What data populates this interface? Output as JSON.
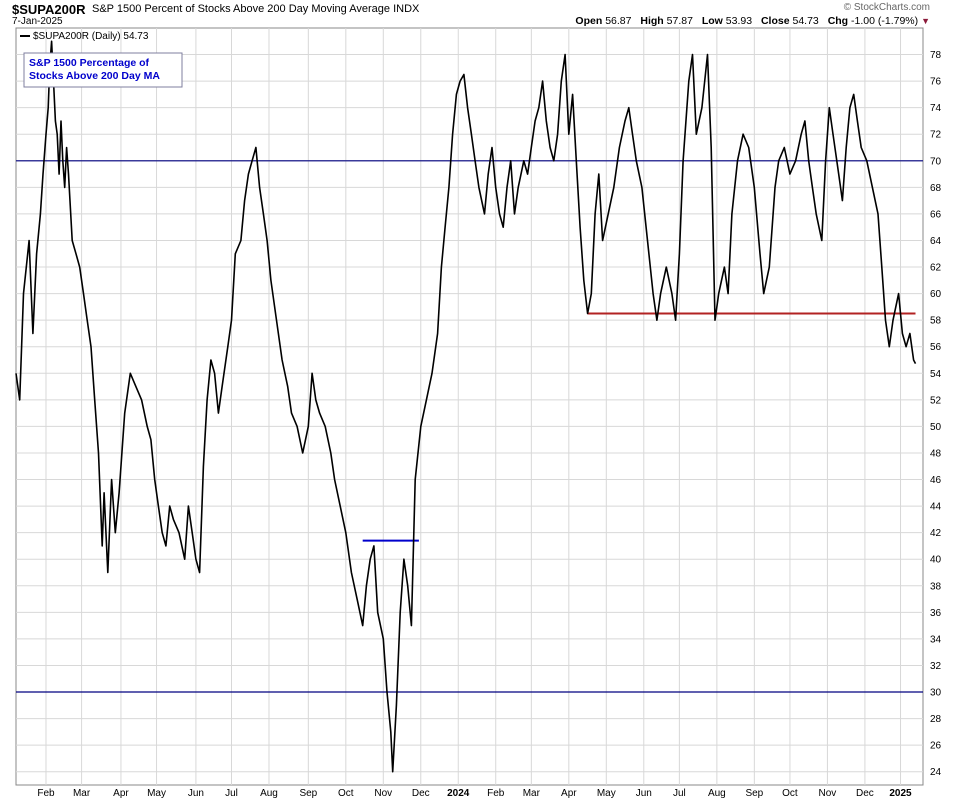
{
  "header": {
    "symbol": "$SUPA200R",
    "description": "S&P 1500 Percent of Stocks Above 200 Day Moving Average",
    "exchange": "INDX",
    "date": "7-Jan-2025",
    "brand": "© StockCharts.com",
    "open_label": "Open",
    "open": "56.87",
    "high_label": "High",
    "high": "57.87",
    "low_label": "Low",
    "low": "53.93",
    "close_label": "Close",
    "close": "54.73",
    "chg_label": "Chg",
    "chg": "-1.00 (-1.79%)"
  },
  "chart_data": {
    "type": "line",
    "legend_label": "$SUPA200R (Daily) 54.73",
    "annotation": [
      "S&P 1500 Percentage of",
      "Stocks Above 200 Day MA"
    ],
    "ylim": [
      23,
      80
    ],
    "yticks": [
      24,
      26,
      28,
      30,
      32,
      34,
      36,
      38,
      40,
      42,
      44,
      46,
      48,
      50,
      52,
      54,
      56,
      58,
      60,
      62,
      64,
      66,
      68,
      70,
      72,
      74,
      76,
      78
    ],
    "xlim": [
      0,
      24.2
    ],
    "xticks": [
      {
        "label": "Feb",
        "x": 0.8
      },
      {
        "label": "Mar",
        "x": 1.75
      },
      {
        "label": "Apr",
        "x": 2.8
      },
      {
        "label": "May",
        "x": 3.75
      },
      {
        "label": "Jun",
        "x": 4.8
      },
      {
        "label": "Jul",
        "x": 5.75
      },
      {
        "label": "Aug",
        "x": 6.75
      },
      {
        "label": "Sep",
        "x": 7.8
      },
      {
        "label": "Oct",
        "x": 8.8
      },
      {
        "label": "Nov",
        "x": 9.8
      },
      {
        "label": "Dec",
        "x": 10.8
      },
      {
        "label": "2024",
        "x": 11.8,
        "year": true
      },
      {
        "label": "Feb",
        "x": 12.8
      },
      {
        "label": "Mar",
        "x": 13.75
      },
      {
        "label": "Apr",
        "x": 14.75
      },
      {
        "label": "May",
        "x": 15.75
      },
      {
        "label": "Jun",
        "x": 16.75
      },
      {
        "label": "Jul",
        "x": 17.7
      },
      {
        "label": "Aug",
        "x": 18.7
      },
      {
        "label": "Sep",
        "x": 19.7
      },
      {
        "label": "Oct",
        "x": 20.65
      },
      {
        "label": "Nov",
        "x": 21.65
      },
      {
        "label": "Dec",
        "x": 22.65
      },
      {
        "label": "2025",
        "x": 23.6,
        "year": true
      }
    ],
    "hlines": [
      {
        "y": 70,
        "color": "#000080"
      },
      {
        "y": 30,
        "color": "#000080"
      }
    ],
    "segments": [
      {
        "x1": 15.25,
        "x2": 24.0,
        "y": 58.5,
        "color": "#b22222"
      },
      {
        "x1": 9.25,
        "x2": 10.75,
        "y": 41.4,
        "color": "#0000cc"
      }
    ],
    "series": [
      {
        "color": "#000000",
        "points": [
          [
            0.0,
            54
          ],
          [
            0.1,
            52
          ],
          [
            0.2,
            60
          ],
          [
            0.35,
            64
          ],
          [
            0.45,
            57
          ],
          [
            0.55,
            63
          ],
          [
            0.65,
            66
          ],
          [
            0.72,
            69
          ],
          [
            0.8,
            72
          ],
          [
            0.86,
            74
          ],
          [
            0.9,
            77
          ],
          [
            0.95,
            79
          ],
          [
            1.0,
            76
          ],
          [
            1.05,
            73
          ],
          [
            1.1,
            72
          ],
          [
            1.15,
            69
          ],
          [
            1.2,
            73
          ],
          [
            1.25,
            70
          ],
          [
            1.3,
            68
          ],
          [
            1.35,
            71
          ],
          [
            1.4,
            69
          ],
          [
            1.5,
            64
          ],
          [
            1.6,
            63
          ],
          [
            1.7,
            62
          ],
          [
            1.8,
            60
          ],
          [
            1.9,
            58
          ],
          [
            2.0,
            56
          ],
          [
            2.1,
            52
          ],
          [
            2.2,
            48
          ],
          [
            2.3,
            41
          ],
          [
            2.35,
            45
          ],
          [
            2.45,
            39
          ],
          [
            2.55,
            46
          ],
          [
            2.65,
            42
          ],
          [
            2.75,
            45
          ],
          [
            2.9,
            51
          ],
          [
            3.05,
            54
          ],
          [
            3.2,
            53
          ],
          [
            3.35,
            52
          ],
          [
            3.5,
            50
          ],
          [
            3.6,
            49
          ],
          [
            3.7,
            46
          ],
          [
            3.8,
            44
          ],
          [
            3.9,
            42
          ],
          [
            4.0,
            41
          ],
          [
            4.1,
            44
          ],
          [
            4.2,
            43
          ],
          [
            4.35,
            42
          ],
          [
            4.5,
            40
          ],
          [
            4.6,
            44
          ],
          [
            4.7,
            42
          ],
          [
            4.8,
            40
          ],
          [
            4.9,
            39
          ],
          [
            5.0,
            47
          ],
          [
            5.1,
            52
          ],
          [
            5.2,
            55
          ],
          [
            5.3,
            54
          ],
          [
            5.4,
            51
          ],
          [
            5.5,
            53
          ],
          [
            5.65,
            56
          ],
          [
            5.75,
            58
          ],
          [
            5.85,
            63
          ],
          [
            6.0,
            64
          ],
          [
            6.1,
            67
          ],
          [
            6.2,
            69
          ],
          [
            6.3,
            70
          ],
          [
            6.4,
            71
          ],
          [
            6.5,
            68
          ],
          [
            6.6,
            66
          ],
          [
            6.7,
            64
          ],
          [
            6.8,
            61
          ],
          [
            6.95,
            58
          ],
          [
            7.1,
            55
          ],
          [
            7.25,
            53
          ],
          [
            7.35,
            51
          ],
          [
            7.5,
            50
          ],
          [
            7.65,
            48
          ],
          [
            7.8,
            50
          ],
          [
            7.9,
            54
          ],
          [
            8.0,
            52
          ],
          [
            8.1,
            51
          ],
          [
            8.25,
            50
          ],
          [
            8.4,
            48
          ],
          [
            8.5,
            46
          ],
          [
            8.65,
            44
          ],
          [
            8.8,
            42
          ],
          [
            8.95,
            39
          ],
          [
            9.1,
            37
          ],
          [
            9.25,
            35
          ],
          [
            9.35,
            38
          ],
          [
            9.45,
            40
          ],
          [
            9.55,
            41
          ],
          [
            9.65,
            36
          ],
          [
            9.8,
            34
          ],
          [
            9.9,
            30
          ],
          [
            10.0,
            27
          ],
          [
            10.05,
            24
          ],
          [
            10.15,
            29
          ],
          [
            10.25,
            36
          ],
          [
            10.35,
            40
          ],
          [
            10.45,
            38
          ],
          [
            10.55,
            35
          ],
          [
            10.65,
            46
          ],
          [
            10.8,
            50
          ],
          [
            10.95,
            52
          ],
          [
            11.1,
            54
          ],
          [
            11.25,
            57
          ],
          [
            11.35,
            62
          ],
          [
            11.45,
            65
          ],
          [
            11.55,
            68
          ],
          [
            11.65,
            72
          ],
          [
            11.75,
            75
          ],
          [
            11.85,
            76
          ],
          [
            11.95,
            76.5
          ],
          [
            12.05,
            74
          ],
          [
            12.15,
            72
          ],
          [
            12.25,
            70
          ],
          [
            12.35,
            68
          ],
          [
            12.5,
            66
          ],
          [
            12.6,
            69
          ],
          [
            12.7,
            71
          ],
          [
            12.8,
            68
          ],
          [
            12.9,
            66
          ],
          [
            13.0,
            65
          ],
          [
            13.1,
            68
          ],
          [
            13.2,
            70
          ],
          [
            13.3,
            66
          ],
          [
            13.4,
            68
          ],
          [
            13.55,
            70
          ],
          [
            13.65,
            69
          ],
          [
            13.75,
            71
          ],
          [
            13.85,
            73
          ],
          [
            13.95,
            74
          ],
          [
            14.05,
            76
          ],
          [
            14.15,
            73
          ],
          [
            14.25,
            71
          ],
          [
            14.35,
            70
          ],
          [
            14.45,
            72
          ],
          [
            14.55,
            76
          ],
          [
            14.65,
            78
          ],
          [
            14.75,
            72
          ],
          [
            14.85,
            75
          ],
          [
            14.95,
            70
          ],
          [
            15.05,
            65
          ],
          [
            15.15,
            61
          ],
          [
            15.25,
            58.5
          ],
          [
            15.35,
            60
          ],
          [
            15.45,
            66
          ],
          [
            15.55,
            69
          ],
          [
            15.65,
            64
          ],
          [
            15.8,
            66
          ],
          [
            15.95,
            68
          ],
          [
            16.1,
            71
          ],
          [
            16.25,
            73
          ],
          [
            16.35,
            74
          ],
          [
            16.45,
            72
          ],
          [
            16.55,
            70
          ],
          [
            16.7,
            68
          ],
          [
            16.85,
            64
          ],
          [
            17.0,
            60
          ],
          [
            17.1,
            58
          ],
          [
            17.2,
            60
          ],
          [
            17.35,
            62
          ],
          [
            17.5,
            60
          ],
          [
            17.6,
            58
          ],
          [
            17.7,
            63
          ],
          [
            17.8,
            70
          ],
          [
            17.95,
            76
          ],
          [
            18.05,
            78
          ],
          [
            18.15,
            72
          ],
          [
            18.3,
            74
          ],
          [
            18.45,
            78
          ],
          [
            18.55,
            71
          ],
          [
            18.65,
            58
          ],
          [
            18.75,
            60
          ],
          [
            18.9,
            62
          ],
          [
            19.0,
            60
          ],
          [
            19.1,
            66
          ],
          [
            19.25,
            70
          ],
          [
            19.4,
            72
          ],
          [
            19.55,
            71
          ],
          [
            19.7,
            68
          ],
          [
            19.85,
            63
          ],
          [
            19.95,
            60
          ],
          [
            20.1,
            62
          ],
          [
            20.25,
            68
          ],
          [
            20.35,
            70
          ],
          [
            20.5,
            71
          ],
          [
            20.65,
            69
          ],
          [
            20.8,
            70
          ],
          [
            20.95,
            72
          ],
          [
            21.05,
            73
          ],
          [
            21.15,
            70
          ],
          [
            21.25,
            68
          ],
          [
            21.35,
            66
          ],
          [
            21.5,
            64
          ],
          [
            21.6,
            70
          ],
          [
            21.7,
            74
          ],
          [
            21.8,
            72
          ],
          [
            21.95,
            69
          ],
          [
            22.05,
            67
          ],
          [
            22.15,
            71
          ],
          [
            22.25,
            74
          ],
          [
            22.35,
            75
          ],
          [
            22.45,
            73
          ],
          [
            22.55,
            71
          ],
          [
            22.7,
            70
          ],
          [
            22.85,
            68
          ],
          [
            23.0,
            66
          ],
          [
            23.1,
            62
          ],
          [
            23.2,
            58
          ],
          [
            23.3,
            56
          ],
          [
            23.4,
            58
          ],
          [
            23.55,
            60
          ],
          [
            23.65,
            57
          ],
          [
            23.75,
            56
          ],
          [
            23.85,
            57
          ],
          [
            23.95,
            55
          ],
          [
            24.0,
            54.73
          ]
        ]
      }
    ]
  }
}
